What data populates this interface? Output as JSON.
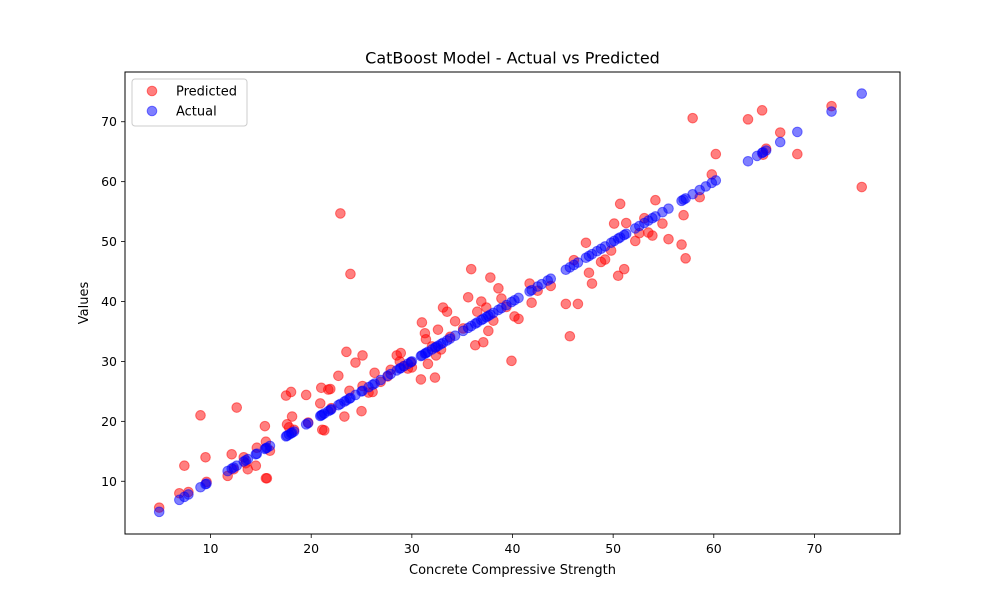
{
  "chart_data": {
    "type": "scatter",
    "title": "CatBoost Model - Actual vs Predicted",
    "xlabel": "Concrete Compressive Strength",
    "ylabel": "Values",
    "xlim": [
      1.5,
      78.5
    ],
    "ylim": [
      1.2,
      78.3
    ],
    "xticks": [
      10,
      20,
      30,
      40,
      50,
      60,
      70
    ],
    "yticks": [
      10,
      20,
      30,
      40,
      50,
      60,
      70
    ],
    "grid": false,
    "legend_position": "top-left",
    "series": [
      {
        "name": "Predicted",
        "color": "#ff0000",
        "x": [
          4.9,
          6.9,
          7.4,
          7.8,
          9.0,
          9.5,
          9.6,
          11.7,
          12.1,
          12.3,
          12.6,
          13.3,
          13.5,
          13.7,
          14.5,
          14.6,
          15.4,
          15.5,
          15.6,
          15.5,
          15.9,
          17.5,
          17.6,
          17.8,
          18.0,
          18.1,
          18.3,
          19.5,
          19.7,
          20.9,
          21.0,
          21.1,
          21.3,
          21.7,
          21.9,
          22.0,
          22.7,
          22.9,
          23.3,
          23.5,
          23.8,
          23.9,
          24.4,
          25.0,
          25.1,
          25.1,
          25.7,
          26.1,
          26.3,
          26.9,
          27.6,
          27.9,
          28.5,
          28.8,
          28.9,
          29.2,
          29.6,
          29.9,
          30.0,
          30.9,
          31.0,
          31.3,
          31.4,
          31.6,
          32.0,
          32.3,
          32.4,
          32.6,
          32.9,
          33.1,
          33.5,
          33.8,
          34.3,
          35.1,
          35.6,
          35.9,
          36.3,
          36.5,
          36.9,
          37.1,
          37.4,
          37.6,
          37.8,
          38.1,
          38.6,
          38.9,
          39.4,
          39.9,
          40.2,
          40.6,
          41.7,
          41.9,
          42.5,
          43.8,
          45.3,
          45.7,
          46.1,
          46.5,
          47.3,
          47.6,
          47.9,
          48.8,
          49.2,
          49.8,
          50.1,
          50.5,
          50.7,
          51.1,
          51.3,
          52.2,
          52.6,
          53.1,
          53.5,
          53.9,
          54.2,
          54.9,
          55.5,
          56.8,
          57.0,
          57.2,
          57.9,
          58.6,
          59.8,
          60.2,
          63.4,
          64.8,
          64.9,
          65.2,
          66.6,
          68.3,
          71.7,
          74.7
        ],
        "y": [
          5.6,
          8.0,
          12.6,
          8.2,
          21.0,
          14.0,
          9.9,
          10.9,
          14.5,
          12.0,
          22.3,
          14.0,
          13.0,
          12.0,
          12.6,
          15.6,
          19.2,
          10.5,
          10.5,
          16.6,
          15.1,
          24.3,
          19.5,
          19.0,
          24.9,
          20.8,
          18.6,
          24.4,
          19.8,
          23.0,
          25.6,
          18.6,
          18.5,
          25.3,
          25.4,
          22.2,
          27.6,
          54.7,
          20.8,
          31.6,
          25.1,
          44.6,
          29.8,
          21.7,
          25.9,
          31.0,
          24.8,
          24.9,
          28.1,
          26.6,
          27.5,
          28.6,
          31.0,
          30.0,
          31.4,
          29.2,
          28.8,
          29.8,
          29.0,
          27.0,
          36.5,
          34.7,
          33.7,
          29.6,
          32.5,
          27.3,
          31.0,
          35.3,
          32.0,
          39.0,
          38.3,
          34.1,
          36.7,
          35.5,
          40.7,
          45.4,
          32.7,
          38.3,
          40.0,
          33.2,
          39.0,
          35.1,
          44.0,
          36.8,
          42.2,
          40.5,
          39.1,
          30.1,
          37.5,
          37.1,
          43.0,
          39.8,
          41.8,
          42.6,
          39.6,
          34.2,
          46.9,
          39.6,
          49.8,
          44.8,
          43.0,
          46.6,
          47.0,
          48.5,
          53.0,
          44.3,
          56.3,
          45.4,
          53.1,
          50.1,
          51.4,
          53.9,
          51.5,
          51.0,
          56.9,
          53.0,
          50.4,
          49.5,
          54.4,
          47.2,
          70.6,
          57.4,
          61.2,
          64.6,
          70.4,
          71.9,
          64.5,
          65.5,
          68.2,
          64.6,
          72.6,
          59.1
        ]
      },
      {
        "name": "Actual",
        "color": "#0000ff",
        "x": [
          4.9,
          6.9,
          7.4,
          7.8,
          9.0,
          9.5,
          9.6,
          11.7,
          12.1,
          12.3,
          12.6,
          13.3,
          13.5,
          13.7,
          14.5,
          14.6,
          15.4,
          15.5,
          15.6,
          15.9,
          17.5,
          17.6,
          17.8,
          18.0,
          18.1,
          18.3,
          19.5,
          19.7,
          20.9,
          21.0,
          21.1,
          21.3,
          21.7,
          21.9,
          22.0,
          22.7,
          22.9,
          23.3,
          23.5,
          23.8,
          23.9,
          24.4,
          25.0,
          25.1,
          25.7,
          26.1,
          26.3,
          26.9,
          27.6,
          27.9,
          28.5,
          28.8,
          28.9,
          29.2,
          29.6,
          29.9,
          30.0,
          30.9,
          31.0,
          31.3,
          31.4,
          31.6,
          32.0,
          32.3,
          32.4,
          32.6,
          32.9,
          33.1,
          33.5,
          33.8,
          34.3,
          35.1,
          35.6,
          35.9,
          36.3,
          36.5,
          36.9,
          37.1,
          37.4,
          37.6,
          37.8,
          38.1,
          38.6,
          38.9,
          39.4,
          39.9,
          40.2,
          40.6,
          41.7,
          41.9,
          42.5,
          42.9,
          43.5,
          43.8,
          45.3,
          45.7,
          46.1,
          46.5,
          47.3,
          47.6,
          47.9,
          48.4,
          48.8,
          49.2,
          49.8,
          50.1,
          50.5,
          50.7,
          51.1,
          51.3,
          52.2,
          52.6,
          53.1,
          53.5,
          53.9,
          54.2,
          54.9,
          55.5,
          56.8,
          57.0,
          57.2,
          57.9,
          58.6,
          59.2,
          59.8,
          60.2,
          63.4,
          64.3,
          64.8,
          64.9,
          65.2,
          66.6,
          68.3,
          71.7,
          74.7
        ],
        "y": [
          4.9,
          6.9,
          7.4,
          7.8,
          9.0,
          9.5,
          9.6,
          11.7,
          12.1,
          12.3,
          12.6,
          13.3,
          13.5,
          13.7,
          14.5,
          14.6,
          15.4,
          15.5,
          15.6,
          15.9,
          17.5,
          17.6,
          17.8,
          18.0,
          18.1,
          18.3,
          19.5,
          19.7,
          20.9,
          21.0,
          21.1,
          21.3,
          21.7,
          21.9,
          22.0,
          22.7,
          22.9,
          23.3,
          23.5,
          23.8,
          23.9,
          24.4,
          25.0,
          25.1,
          25.7,
          26.1,
          26.3,
          26.9,
          27.6,
          27.9,
          28.5,
          28.8,
          28.9,
          29.2,
          29.6,
          29.9,
          30.0,
          30.9,
          31.0,
          31.3,
          31.4,
          31.6,
          32.0,
          32.3,
          32.4,
          32.6,
          32.9,
          33.1,
          33.5,
          33.8,
          34.3,
          35.1,
          35.6,
          35.9,
          36.3,
          36.5,
          36.9,
          37.1,
          37.4,
          37.6,
          37.8,
          38.1,
          38.6,
          38.9,
          39.4,
          39.9,
          40.2,
          40.6,
          41.7,
          41.9,
          42.5,
          42.9,
          43.5,
          43.8,
          45.3,
          45.7,
          46.1,
          46.5,
          47.3,
          47.6,
          47.9,
          48.4,
          48.8,
          49.2,
          49.8,
          50.1,
          50.5,
          50.7,
          51.1,
          51.3,
          52.2,
          52.6,
          53.1,
          53.5,
          53.9,
          54.2,
          54.9,
          55.5,
          56.8,
          57.0,
          57.2,
          57.9,
          58.6,
          59.2,
          59.8,
          60.2,
          63.4,
          64.3,
          64.8,
          64.9,
          65.2,
          66.6,
          68.3,
          71.7,
          74.7
        ]
      }
    ]
  }
}
